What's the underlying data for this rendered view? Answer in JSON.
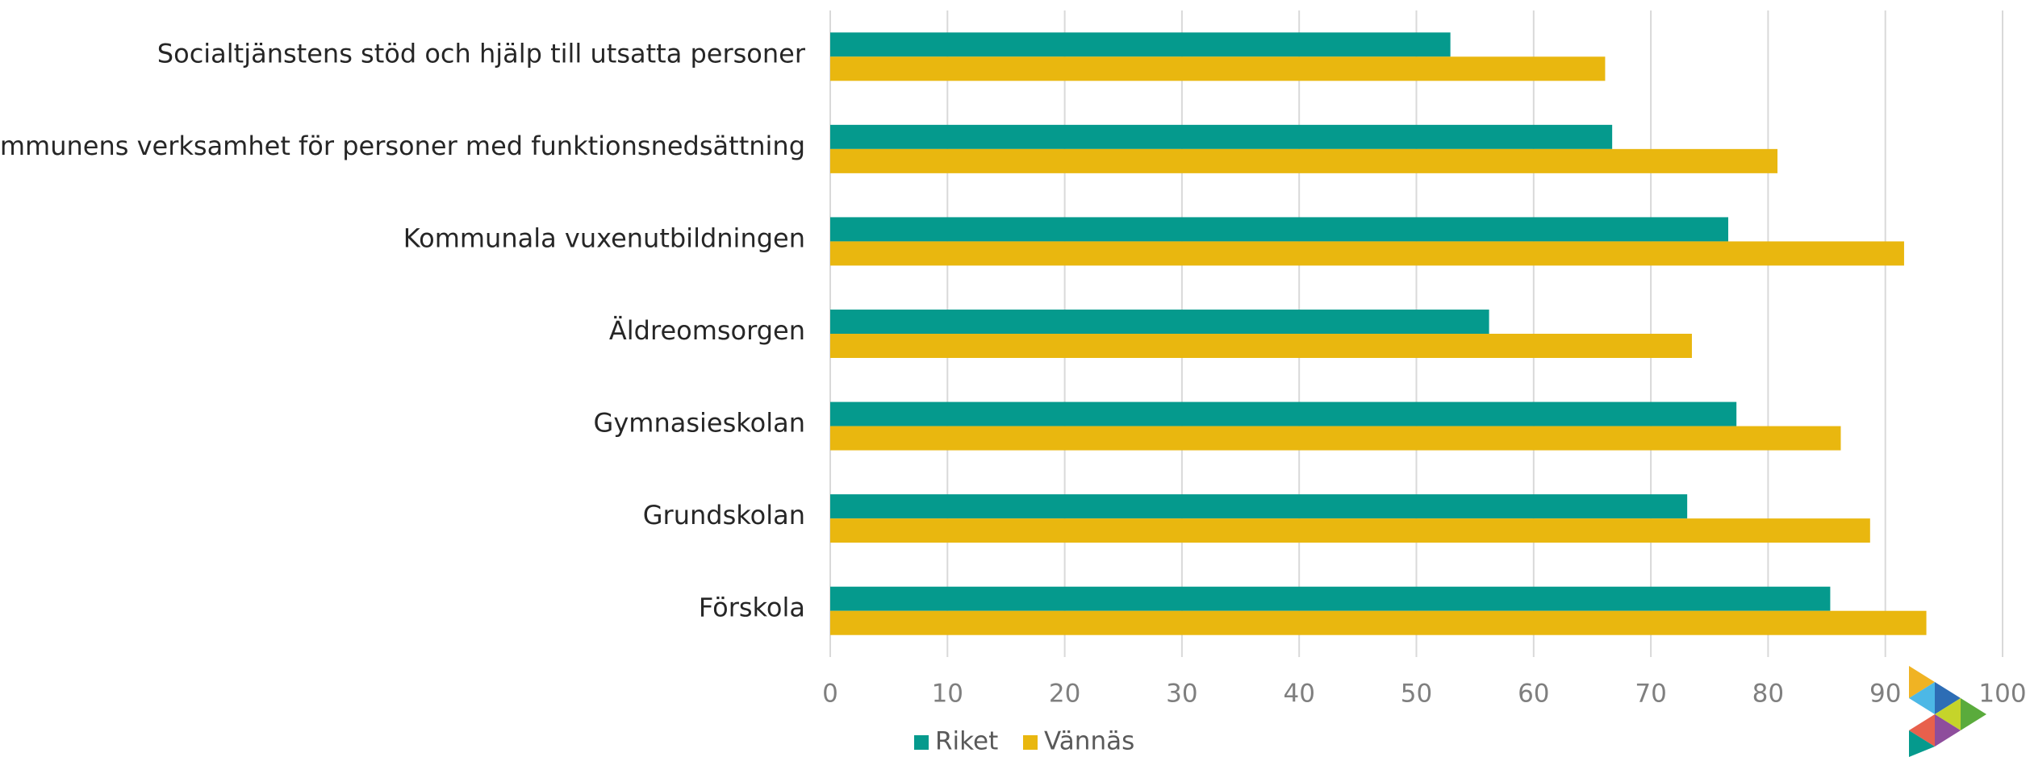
{
  "chart_data": {
    "type": "bar",
    "orientation": "horizontal",
    "categories": [
      "Socialtjänstens stöd och hjälp till utsatta personer",
      "Kommunens verksamhet för personer med funktionsnedsättning",
      "Kommunala vuxenutbildningen",
      "Äldreomsorgen",
      "Gymnasieskolan",
      "Grundskolan",
      "Förskola"
    ],
    "series": [
      {
        "name": "Riket",
        "color": "#059a8d",
        "values": [
          52.9,
          66.7,
          76.6,
          56.2,
          77.3,
          73.1,
          85.3
        ]
      },
      {
        "name": "Vännäs",
        "color": "#e9b70f",
        "values": [
          66.1,
          80.8,
          91.6,
          73.5,
          86.2,
          88.7,
          93.5
        ]
      }
    ],
    "xlim": [
      0,
      100
    ],
    "xticks": [
      0,
      10,
      20,
      30,
      40,
      50,
      60,
      70,
      80,
      90,
      100
    ],
    "grid": true,
    "legend": "bottom"
  }
}
